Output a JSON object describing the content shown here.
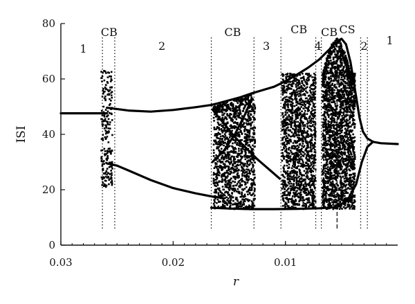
{
  "chart_data": {
    "type": "scatter",
    "title": "",
    "xlabel": "r",
    "ylabel": "ISI",
    "xlim": [
      0.03,
      0.0
    ],
    "ylim": [
      0,
      80
    ],
    "x_reversed": true,
    "x_ticks": [
      0.03,
      0.02,
      0.01
    ],
    "x_tick_labels": [
      "0.03",
      "0.02",
      "0.01"
    ],
    "y_ticks": [
      0,
      20,
      40,
      60,
      80
    ],
    "y_tick_labels": [
      "0",
      "20",
      "40",
      "60",
      "80"
    ],
    "grid": false,
    "boundaries": [
      {
        "r": 0.0263,
        "style": "dotted"
      },
      {
        "r": 0.0252,
        "style": "dotted"
      },
      {
        "r": 0.0166,
        "style": "dotted"
      },
      {
        "r": 0.0128,
        "style": "dotted"
      },
      {
        "r": 0.0104,
        "style": "dotted"
      },
      {
        "r": 0.0073,
        "style": "dotted"
      },
      {
        "r": 0.0068,
        "style": "dotted"
      },
      {
        "r": 0.0054,
        "style": "dashed"
      },
      {
        "r": 0.0033,
        "style": "dotted"
      },
      {
        "r": 0.0027,
        "style": "dotted"
      }
    ],
    "region_labels": [
      {
        "text": "1",
        "r": 0.028,
        "isi": 71
      },
      {
        "text": "CB",
        "r": 0.0257,
        "isi": 77
      },
      {
        "text": "2",
        "r": 0.021,
        "isi": 72
      },
      {
        "text": "CB",
        "r": 0.0147,
        "isi": 77
      },
      {
        "text": "3",
        "r": 0.0117,
        "isi": 72
      },
      {
        "text": "CB",
        "r": 0.0088,
        "isi": 78
      },
      {
        "text": "4",
        "r": 0.0071,
        "isi": 72
      },
      {
        "text": "CB",
        "r": 0.0061,
        "isi": 77
      },
      {
        "text": "CS",
        "r": 0.0045,
        "isi": 78
      },
      {
        "text": "2",
        "r": 0.003,
        "isi": 72
      },
      {
        "text": "1",
        "r": 0.0007,
        "isi": 74
      }
    ],
    "series": [
      {
        "kind": "curve",
        "points": [
          [
            0.03,
            47.6
          ],
          [
            0.028,
            47.6
          ],
          [
            0.0263,
            47.6
          ],
          [
            0.0259,
            47.6
          ]
        ]
      },
      {
        "kind": "curve",
        "points": [
          [
            0.0259,
            49.6
          ],
          [
            0.024,
            48.6
          ],
          [
            0.022,
            48.2
          ],
          [
            0.02,
            48.8
          ],
          [
            0.018,
            49.8
          ],
          [
            0.0166,
            50.6
          ],
          [
            0.016,
            51.2
          ],
          [
            0.015,
            52.3
          ],
          [
            0.014,
            53.4
          ],
          [
            0.013,
            54.8
          ],
          [
            0.012,
            56.0
          ],
          [
            0.011,
            57.2
          ],
          [
            0.01,
            59.2
          ],
          [
            0.009,
            61.5
          ],
          [
            0.008,
            64.0
          ],
          [
            0.007,
            67.0
          ],
          [
            0.006,
            71.0
          ],
          [
            0.0055,
            73.4
          ],
          [
            0.005,
            74.5
          ],
          [
            0.0046,
            72.5
          ],
          [
            0.0042,
            66.0
          ],
          [
            0.0038,
            56.0
          ],
          [
            0.0034,
            46.0
          ],
          [
            0.0031,
            41.0
          ],
          [
            0.0027,
            38.5
          ],
          [
            0.0022,
            37.3
          ],
          [
            0.0015,
            36.8
          ],
          [
            0.0,
            36.5
          ]
        ]
      },
      {
        "kind": "curve",
        "points": [
          [
            0.0259,
            29.5
          ],
          [
            0.025,
            28.7
          ],
          [
            0.024,
            27.0
          ],
          [
            0.022,
            23.5
          ],
          [
            0.02,
            20.6
          ],
          [
            0.018,
            18.7
          ],
          [
            0.0166,
            17.6
          ],
          [
            0.016,
            17.3
          ],
          [
            0.0155,
            16.8
          ]
        ]
      },
      {
        "kind": "curve",
        "points": [
          [
            0.0166,
            13.5
          ],
          [
            0.015,
            13.2
          ],
          [
            0.013,
            13.0
          ],
          [
            0.011,
            13.0
          ],
          [
            0.009,
            13.1
          ],
          [
            0.007,
            13.3
          ],
          [
            0.0055,
            13.7
          ],
          [
            0.0045,
            16.0
          ],
          [
            0.0037,
            22.0
          ],
          [
            0.0032,
            30.0
          ],
          [
            0.0027,
            35.5
          ],
          [
            0.0022,
            37.3
          ]
        ]
      },
      {
        "kind": "curve",
        "points": [
          [
            0.0165,
            49.0
          ],
          [
            0.0155,
            44.0
          ],
          [
            0.0145,
            39.0
          ],
          [
            0.0135,
            35.0
          ],
          [
            0.0125,
            31.0
          ],
          [
            0.0115,
            27.5
          ],
          [
            0.0105,
            24.0
          ]
        ]
      },
      {
        "kind": "curve",
        "points": [
          [
            0.0165,
            30.0
          ],
          [
            0.0155,
            34.0
          ],
          [
            0.0145,
            40.0
          ],
          [
            0.0135,
            48.0
          ],
          [
            0.013,
            53.0
          ]
        ]
      },
      {
        "kind": "chaotic",
        "r_range": [
          0.0264,
          0.0254
        ],
        "isi_range": [
          21.5,
          63.5
        ],
        "points": 220
      },
      {
        "kind": "chaotic",
        "r_range": [
          0.0164,
          0.0127
        ],
        "isi_range": [
          13.0,
          55.0
        ],
        "points": 1400
      },
      {
        "kind": "chaotic",
        "r_range": [
          0.0103,
          0.0073
        ],
        "isi_range": [
          13.0,
          62.0
        ],
        "points": 1500
      },
      {
        "kind": "chaotic",
        "r_range": [
          0.0067,
          0.0038
        ],
        "isi_range": [
          13.0,
          74.5
        ],
        "points": 2400
      }
    ]
  }
}
